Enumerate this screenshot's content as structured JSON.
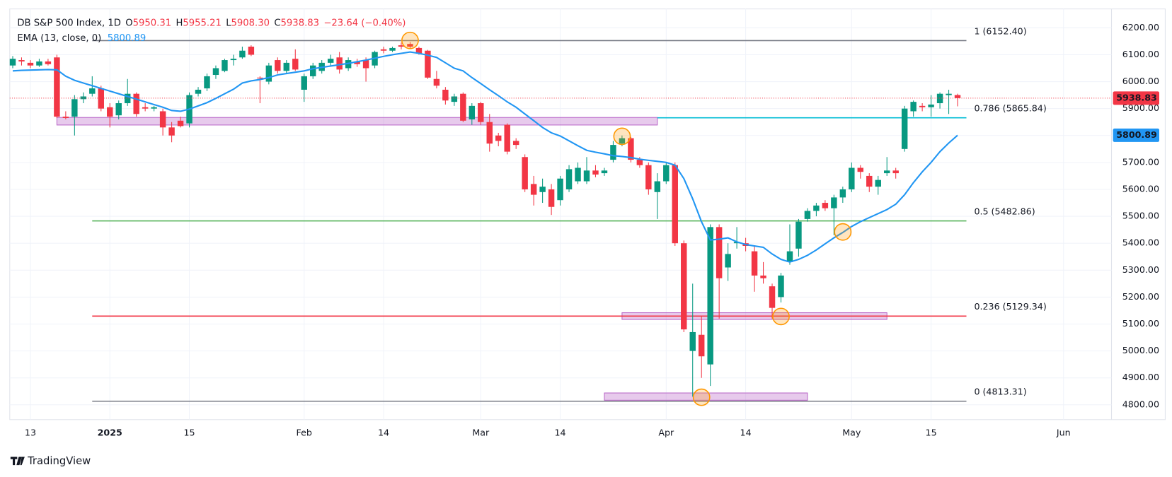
{
  "chart_data": {
    "type": "candlestick",
    "title": "DB S&P 500 Index, 1D",
    "header_items": [
      {
        "key": "O",
        "value": "5950.31"
      },
      {
        "key": "H",
        "value": "5955.21"
      },
      {
        "key": "L",
        "value": "5908.30"
      },
      {
        "key": "C",
        "value": "5938.83"
      }
    ],
    "change": "−23.64 (−0.40%)",
    "up_color": "#089981",
    "down_color": "#f23645",
    "categories": [
      null,
      null,
      "13",
      null,
      null,
      null,
      null,
      null,
      null,
      null,
      null,
      "2025",
      null,
      null,
      null,
      null,
      null,
      null,
      null,
      null,
      "15",
      null,
      null,
      null,
      null,
      null,
      null,
      null,
      null,
      null,
      null,
      null,
      null,
      "Feb",
      null,
      null,
      null,
      null,
      null,
      null,
      null,
      null,
      "14",
      null,
      null,
      null,
      null,
      null,
      null,
      null,
      null,
      null,
      null,
      "Mar",
      null,
      null,
      null,
      null,
      null,
      null,
      null,
      null,
      "14",
      null,
      null,
      null,
      null,
      null,
      null,
      null,
      null,
      null,
      null,
      null,
      "Apr",
      null,
      null,
      null,
      null,
      null,
      null,
      null,
      null,
      "14",
      null,
      null,
      null,
      null,
      null,
      null,
      null,
      null,
      null,
      null,
      null,
      "May",
      null,
      null,
      null,
      null,
      null,
      null,
      null,
      null,
      "15",
      null,
      null,
      null,
      null,
      null,
      null,
      null,
      null,
      null,
      null,
      null,
      null,
      null,
      null,
      "Jun",
      null,
      null,
      null,
      null
    ],
    "ohlc": [
      [
        6060,
        6095,
        6050,
        6085
      ],
      [
        6080,
        6090,
        6060,
        6075
      ],
      [
        6070,
        6080,
        6050,
        6060
      ],
      [
        6060,
        6085,
        6055,
        6075
      ],
      [
        6075,
        6085,
        6060,
        6065
      ],
      [
        6090,
        6100,
        5865,
        5870
      ],
      [
        5870,
        5890,
        5860,
        5865
      ],
      [
        5870,
        5950,
        5800,
        5935
      ],
      [
        5935,
        5960,
        5920,
        5945
      ],
      [
        5955,
        6020,
        5945,
        5975
      ],
      [
        5975,
        5985,
        5890,
        5900
      ],
      [
        5905,
        5920,
        5830,
        5870
      ],
      [
        5875,
        5930,
        5860,
        5920
      ],
      [
        5920,
        6010,
        5910,
        5955
      ],
      [
        5955,
        5960,
        5870,
        5880
      ],
      [
        5905,
        5920,
        5890,
        5900
      ],
      [
        5900,
        5910,
        5890,
        5905
      ],
      [
        5890,
        5900,
        5800,
        5830
      ],
      [
        5830,
        5850,
        5775,
        5800
      ],
      [
        5855,
        5870,
        5830,
        5835
      ],
      [
        5845,
        5960,
        5830,
        5950
      ],
      [
        5955,
        5980,
        5945,
        5970
      ],
      [
        5975,
        6030,
        5965,
        6020
      ],
      [
        6025,
        6060,
        6010,
        6050
      ],
      [
        6040,
        6085,
        6035,
        6080
      ],
      [
        6080,
        6100,
        6060,
        6085
      ],
      [
        6090,
        6130,
        6085,
        6115
      ],
      [
        6130,
        6135,
        6095,
        6100
      ],
      [
        6015,
        6020,
        5920,
        6012
      ],
      [
        6000,
        6070,
        5990,
        6060
      ],
      [
        6080,
        6090,
        6030,
        6040
      ],
      [
        6040,
        6080,
        6030,
        6070
      ],
      [
        6085,
        6120,
        6040,
        6045
      ],
      [
        5970,
        6030,
        5925,
        6020
      ],
      [
        6020,
        6070,
        6010,
        6060
      ],
      [
        6040,
        6080,
        6030,
        6070
      ],
      [
        6070,
        6100,
        6060,
        6085
      ],
      [
        6090,
        6110,
        6030,
        6045
      ],
      [
        6050,
        6090,
        6040,
        6080
      ],
      [
        6075,
        6085,
        6055,
        6065
      ],
      [
        6080,
        6090,
        6000,
        6050
      ],
      [
        6060,
        6115,
        6050,
        6110
      ],
      [
        6120,
        6130,
        6105,
        6115
      ],
      [
        6115,
        6130,
        6110,
        6125
      ],
      [
        6135,
        6145,
        6120,
        6130
      ],
      [
        6140,
        6147,
        6125,
        6130
      ],
      [
        6125,
        6130,
        6100,
        6105
      ],
      [
        6115,
        6118,
        6010,
        6015
      ],
      [
        6010,
        6040,
        5975,
        5985
      ],
      [
        5970,
        5980,
        5915,
        5930
      ],
      [
        5925,
        5955,
        5910,
        5945
      ],
      [
        5955,
        5960,
        5850,
        5855
      ],
      [
        5860,
        5920,
        5840,
        5910
      ],
      [
        5920,
        5925,
        5840,
        5850
      ],
      [
        5850,
        5880,
        5740,
        5770
      ],
      [
        5800,
        5810,
        5760,
        5780
      ],
      [
        5840,
        5845,
        5730,
        5740
      ],
      [
        5780,
        5790,
        5750,
        5765
      ],
      [
        5720,
        5730,
        5590,
        5600
      ],
      [
        5620,
        5650,
        5540,
        5580
      ],
      [
        5590,
        5640,
        5550,
        5610
      ],
      [
        5600,
        5620,
        5505,
        5535
      ],
      [
        5560,
        5650,
        5540,
        5640
      ],
      [
        5600,
        5690,
        5590,
        5675
      ],
      [
        5630,
        5700,
        5620,
        5680
      ],
      [
        5630,
        5720,
        5620,
        5670
      ],
      [
        5670,
        5690,
        5645,
        5655
      ],
      [
        5660,
        5680,
        5650,
        5670
      ],
      [
        5710,
        5780,
        5700,
        5765
      ],
      [
        5770,
        5800,
        5760,
        5790
      ],
      [
        5790,
        5795,
        5700,
        5710
      ],
      [
        5710,
        5720,
        5680,
        5690
      ],
      [
        5690,
        5700,
        5580,
        5600
      ],
      [
        5590,
        5660,
        5490,
        5630
      ],
      [
        5630,
        5700,
        5620,
        5690
      ],
      [
        5690,
        5700,
        5390,
        5400
      ],
      [
        5400,
        5410,
        5070,
        5080
      ],
      [
        5000,
        5250,
        4830,
        5070
      ],
      [
        5060,
        5130,
        4900,
        4980
      ],
      [
        4950,
        5470,
        4870,
        5460
      ],
      [
        5460,
        5470,
        5120,
        5270
      ],
      [
        5310,
        5400,
        5260,
        5360
      ],
      [
        5400,
        5460,
        5380,
        5405
      ],
      [
        5400,
        5420,
        5370,
        5390
      ],
      [
        5370,
        5390,
        5220,
        5280
      ],
      [
        5280,
        5330,
        5250,
        5270
      ],
      [
        5240,
        5250,
        5120,
        5160
      ],
      [
        5200,
        5290,
        5180,
        5280
      ],
      [
        5330,
        5470,
        5320,
        5370
      ],
      [
        5380,
        5490,
        5350,
        5480
      ],
      [
        5490,
        5530,
        5480,
        5520
      ],
      [
        5520,
        5550,
        5500,
        5540
      ],
      [
        5550,
        5560,
        5520,
        5530
      ],
      [
        5530,
        5580,
        5430,
        5570
      ],
      [
        5570,
        5610,
        5550,
        5600
      ],
      [
        5600,
        5700,
        5590,
        5680
      ],
      [
        5680,
        5690,
        5640,
        5665
      ],
      [
        5650,
        5660,
        5590,
        5610
      ],
      [
        5610,
        5650,
        5580,
        5635
      ],
      [
        5660,
        5720,
        5650,
        5670
      ],
      [
        5670,
        5680,
        5640,
        5660
      ],
      [
        5750,
        5910,
        5740,
        5900
      ],
      [
        5890,
        5930,
        5870,
        5925
      ],
      [
        5910,
        5920,
        5890,
        5905
      ],
      [
        5905,
        5950,
        5870,
        5915
      ],
      [
        5920,
        5960,
        5900,
        5955
      ],
      [
        5950,
        5970,
        5880,
        5955
      ],
      [
        5950.31,
        5955.21,
        5908.3,
        5938.83
      ],
      null,
      null,
      null,
      null,
      null,
      null,
      null,
      null,
      null,
      null,
      null,
      null,
      null,
      null,
      null,
      null
    ],
    "last_price": {
      "value": 5938.83,
      "label": "5938.83"
    },
    "ema": {
      "name": "EMA (13, close, 0)",
      "color": "#2196f3",
      "last": {
        "value": 5800.89,
        "label": "5800.89"
      },
      "values": [
        6040,
        6042,
        6043,
        6044,
        6045,
        6044,
        6020,
        6005,
        5995,
        5985,
        5975,
        5965,
        5955,
        5945,
        5935,
        5925,
        5915,
        5905,
        5893,
        5890,
        5898,
        5910,
        5922,
        5938,
        5955,
        5972,
        5995,
        6003,
        6008,
        6015,
        6025,
        6030,
        6035,
        6040,
        6048,
        6053,
        6058,
        6063,
        6068,
        6074,
        6080,
        6087,
        6094,
        6100,
        6105,
        6110,
        6105,
        6098,
        6090,
        6070,
        6050,
        6040,
        6015,
        5993,
        5970,
        5948,
        5925,
        5905,
        5880,
        5855,
        5830,
        5810,
        5798,
        5780,
        5762,
        5745,
        5738,
        5732,
        5725,
        5722,
        5718,
        5712,
        5708,
        5704,
        5700,
        5690,
        5640,
        5565,
        5480,
        5412,
        5415,
        5420,
        5405,
        5395,
        5390,
        5385,
        5360,
        5340,
        5330,
        5340,
        5355,
        5375,
        5398,
        5420,
        5440,
        5462,
        5480,
        5495,
        5510,
        5525,
        5545,
        5580,
        5625,
        5665,
        5700,
        5740,
        5772,
        5800.89,
        null,
        null,
        null,
        null,
        null,
        null,
        null,
        null,
        null,
        null,
        null,
        null,
        null,
        null,
        null,
        null
      ]
    },
    "fib_levels": [
      {
        "label": "1 (6152.40)",
        "value": 6152.4,
        "color": "#787b86"
      },
      {
        "label": "0.786 (5865.84)",
        "value": 5865.84,
        "color": "#00bcd4"
      },
      {
        "label": "0.5 (5482.86)",
        "value": 5482.86,
        "color": "#4caf50"
      },
      {
        "label": "0.236 (5129.34)",
        "value": 5129.34,
        "color": "#f23645"
      },
      {
        "label": "0 (4813.31)",
        "value": 4813.31,
        "color": "#787b86"
      }
    ],
    "zones": [
      [
        5839,
        5867
      ],
      [
        5117,
        5142
      ],
      [
        4817,
        4844
      ]
    ],
    "highlights": [
      6153,
      5797,
      4828,
      5128,
      5442
    ],
    "ylim": [
      4745,
      6270
    ],
    "yticks": [
      {
        "value": 4800,
        "label": "4800.00"
      },
      {
        "value": 4900,
        "label": "4900.00"
      },
      {
        "value": 5000,
        "label": "5000.00"
      },
      {
        "value": 5100,
        "label": "5100.00"
      },
      {
        "value": 5200,
        "label": "5200.00"
      },
      {
        "value": 5300,
        "label": "5300.00"
      },
      {
        "value": 5400,
        "label": "5400.00"
      },
      {
        "value": 5500,
        "label": "5500.00"
      },
      {
        "value": 5600,
        "label": "5600.00"
      },
      {
        "value": 5700,
        "label": "5700.00"
      },
      {
        "value": 5800,
        "label": "5800.00"
      },
      {
        "value": 5900,
        "label": "5900.00"
      },
      {
        "value": 6000,
        "label": "6000.00"
      },
      {
        "value": 6100,
        "label": "6100.00"
      },
      {
        "value": 6200,
        "label": "6200.00"
      }
    ],
    "grid": true,
    "watermark": "TradingView"
  }
}
